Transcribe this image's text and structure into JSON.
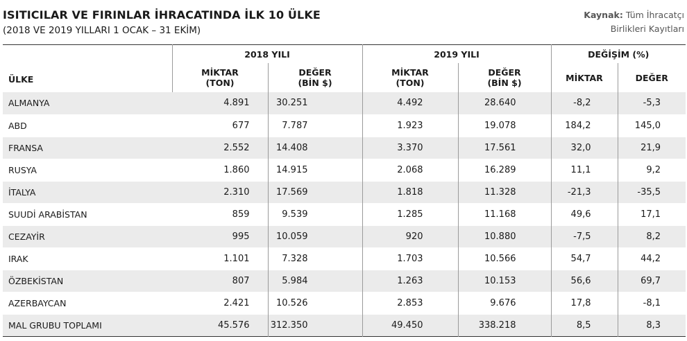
{
  "header": {
    "title": "ISITICILAR VE FIRINLAR İHRACATINDA İLK 10 ÜLKE",
    "subtitle": "(2018 VE 2019 YILLARI 1 OCAK – 31 EKİM)",
    "source_label": "Kaynak:",
    "source_line1": "Tüm İhracatçı",
    "source_line2": "Birlikleri Kayıtları"
  },
  "table": {
    "country_header": "ÜLKE",
    "groups": [
      "2018 YILI",
      "2019 YILI",
      "DEĞİŞİM (%)"
    ],
    "sub_headers": {
      "miktar_ton_1": "MİKTAR",
      "miktar_ton_2": "(TON)",
      "deger_bin_1": "DEĞER",
      "deger_bin_2": "(BİN $)",
      "miktar": "MİKTAR",
      "deger": "DEĞER"
    },
    "rows": [
      [
        "ALMANYA",
        "4.891",
        "30.251",
        "4.492",
        "28.640",
        "-8,2",
        "-5,3"
      ],
      [
        "ABD",
        "677",
        "7.787",
        "1.923",
        "19.078",
        "184,2",
        "145,0"
      ],
      [
        "FRANSA",
        "2.552",
        "14.408",
        "3.370",
        "17.561",
        "32,0",
        "21,9"
      ],
      [
        "RUSYA",
        "1.860",
        "14.915",
        "2.068",
        "16.289",
        "11,1",
        "9,2"
      ],
      [
        "İTALYA",
        "2.310",
        "17.569",
        "1.818",
        "11.328",
        "-21,3",
        "-35,5"
      ],
      [
        "SUUDİ ARABİSTAN",
        "859",
        "9.539",
        "1.285",
        "11.168",
        "49,6",
        "17,1"
      ],
      [
        "CEZAYİR",
        "995",
        "10.059",
        "920",
        "10.880",
        "-7,5",
        "8,2"
      ],
      [
        "IRAK",
        "1.101",
        "7.328",
        "1.703",
        "10.566",
        "54,7",
        "44,2"
      ],
      [
        "ÖZBEKİSTAN",
        "807",
        "5.984",
        "1.263",
        "10.153",
        "56,6",
        "69,7"
      ],
      [
        "AZERBAYCAN",
        "2.421",
        "10.526",
        "2.853",
        "9.676",
        "17,8",
        "-8,1"
      ],
      [
        "MAL GRUBU TOPLAMI",
        "45.576",
        "312.350",
        "49.450",
        "338.218",
        "8,5",
        "8,3"
      ]
    ]
  },
  "colors": {
    "stripe": "#ebebeb",
    "text": "#1a1a1a",
    "source": "#555555"
  }
}
